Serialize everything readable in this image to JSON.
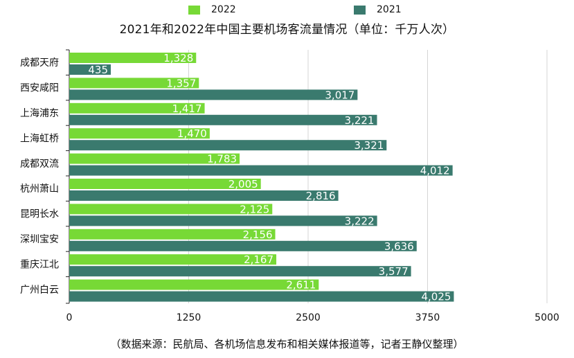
{
  "chart_data": {
    "type": "bar",
    "orientation": "horizontal",
    "title": "2021年和2022年中国主要机场客流量情况（单位：千万人次）",
    "categories": [
      "成都天府",
      "西安咸阳",
      "上海浦东",
      "上海虹桥",
      "成都双流",
      "杭州萧山",
      "昆明长水",
      "深圳宝安",
      "重庆江北",
      "广州白云"
    ],
    "series": [
      {
        "name": "2022",
        "color": "#77d936",
        "values": [
          1328,
          1357,
          1417,
          1470,
          1783,
          2005,
          2125,
          2156,
          2167,
          2611
        ],
        "labels": [
          "1,328",
          "1,357",
          "1,417",
          "1,470",
          "1,783",
          "2,005",
          "2,125",
          "2,156",
          "2,167",
          "2,611"
        ]
      },
      {
        "name": "2021",
        "color": "#3a7a6e",
        "values": [
          435,
          3017,
          3221,
          3321,
          4012,
          2816,
          3222,
          3636,
          3577,
          4025
        ],
        "labels": [
          "435",
          "3,017",
          "3,221",
          "3,321",
          "4,012",
          "2,816",
          "3,222",
          "3,636",
          "3,577",
          "4,025"
        ]
      }
    ],
    "xlim": [
      0,
      5000
    ],
    "xticks": [
      0,
      1250,
      2500,
      3750,
      5000
    ],
    "xtick_labels": [
      "0",
      "1250",
      "2500",
      "3750",
      "5000"
    ],
    "grid": "vertical",
    "legend_position": "top-center",
    "footnote": "（数据来源：民航局、各机场信息发布和相关媒体报道等，记者王静仪整理）"
  }
}
